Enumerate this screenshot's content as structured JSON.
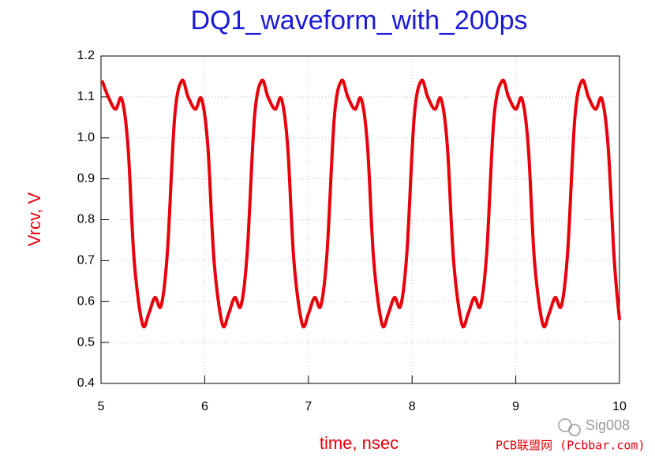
{
  "chart_data": {
    "type": "line",
    "title": "DQ1_waveform_with_200ps",
    "x_label": "time, nsec",
    "y_label": "Vrcv, V",
    "x": [
      5.01,
      5.07,
      5.14,
      5.2,
      5.26,
      5.32,
      5.4,
      5.46,
      5.52,
      5.58,
      5.64,
      5.71,
      5.78,
      5.84,
      5.91,
      5.97,
      6.03,
      6.09,
      6.17,
      6.23,
      6.29,
      6.35,
      6.41,
      6.48,
      6.55,
      6.61,
      6.68,
      6.74,
      6.8,
      6.86,
      6.94,
      7.0,
      7.06,
      7.12,
      7.18,
      7.25,
      7.32,
      7.38,
      7.45,
      7.51,
      7.57,
      7.63,
      7.71,
      7.77,
      7.83,
      7.89,
      7.95,
      8.02,
      8.09,
      8.15,
      8.22,
      8.28,
      8.34,
      8.4,
      8.48,
      8.54,
      8.6,
      8.66,
      8.72,
      8.79,
      8.87,
      8.93,
      9.0,
      9.06,
      9.12,
      9.18,
      9.26,
      9.32,
      9.38,
      9.44,
      9.5,
      9.57,
      9.64,
      9.7,
      9.77,
      9.83,
      9.89,
      9.95,
      10.0
    ],
    "series": [
      {
        "name": "Vrcv",
        "color": "#e8000b",
        "values": [
          1.14,
          1.1,
          1.07,
          1.095,
          0.98,
          0.7,
          0.545,
          0.57,
          0.61,
          0.59,
          0.72,
          1.05,
          1.14,
          1.1,
          1.07,
          1.095,
          0.98,
          0.7,
          0.545,
          0.57,
          0.61,
          0.59,
          0.72,
          1.05,
          1.14,
          1.1,
          1.07,
          1.095,
          0.98,
          0.7,
          0.545,
          0.57,
          0.61,
          0.59,
          0.72,
          1.05,
          1.14,
          1.1,
          1.07,
          1.095,
          0.98,
          0.7,
          0.545,
          0.57,
          0.61,
          0.59,
          0.72,
          1.05,
          1.14,
          1.1,
          1.07,
          1.095,
          0.98,
          0.7,
          0.545,
          0.57,
          0.61,
          0.59,
          0.72,
          1.05,
          1.14,
          1.1,
          1.07,
          1.095,
          0.98,
          0.7,
          0.545,
          0.57,
          0.61,
          0.59,
          0.72,
          1.05,
          1.14,
          1.1,
          1.07,
          1.095,
          0.98,
          0.7,
          0.555
        ]
      }
    ],
    "xlim": [
      5,
      10
    ],
    "ylim": [
      0.4,
      1.2
    ],
    "xticks": [
      5,
      6,
      7,
      8,
      9,
      10
    ],
    "yticks": [
      0.4,
      0.5,
      0.6,
      0.7,
      0.8,
      0.9,
      {
        "value": 1,
        "label": "1.0"
      },
      1.1,
      1.2
    ],
    "grid": true,
    "watermark": "Sig008",
    "source": "PCB联盟网 (Pcbbar.com)"
  }
}
